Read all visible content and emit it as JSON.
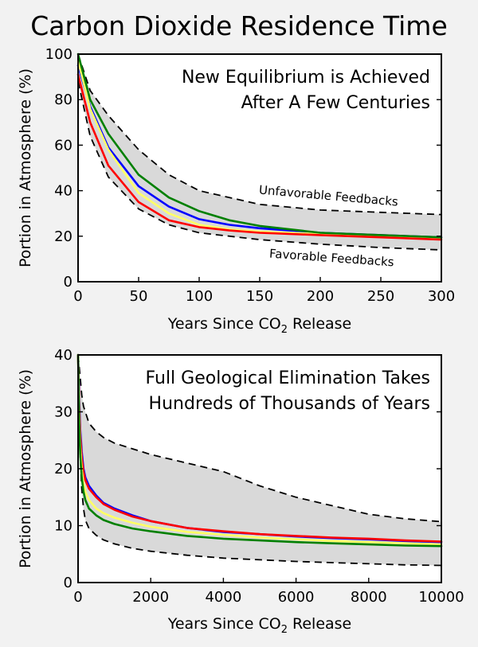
{
  "page_title": "Carbon Dioxide Residence Time",
  "colors": {
    "band_fill": "#d9d9d9",
    "bound_line": "#000000",
    "red": "#ff0000",
    "yellow": "#ffff66",
    "blue": "#0000ff",
    "green": "#008000"
  },
  "chart_data": [
    {
      "type": "line",
      "annotation": [
        "New Equilibrium is Achieved",
        "After A Few Centuries"
      ],
      "xlabel": "Years Since CO",
      "xlabel_sub": "2",
      "xlabel_after": " Release",
      "ylabel": "Portion in Atmosphere (%)",
      "xlim": [
        0,
        300
      ],
      "ylim": [
        0,
        100
      ],
      "xticks": [
        0,
        50,
        100,
        150,
        200,
        250,
        300
      ],
      "yticks": [
        0,
        20,
        40,
        60,
        80,
        100
      ],
      "upper_bound": {
        "name": "Unfavorable Feedbacks",
        "x": [
          0,
          10,
          25,
          50,
          75,
          100,
          150,
          200,
          250,
          300
        ],
        "y": [
          100,
          84,
          73,
          58,
          47,
          40,
          34,
          31.5,
          30.5,
          29.5
        ]
      },
      "lower_bound": {
        "name": "Favorable Feedbacks",
        "x": [
          0,
          10,
          25,
          50,
          75,
          100,
          150,
          200,
          250,
          300
        ],
        "y": [
          88,
          64,
          46,
          32,
          25,
          21.5,
          18.5,
          16.5,
          15,
          14
        ]
      },
      "series": [
        {
          "color": "#0000ff",
          "x": [
            0,
            10,
            25,
            50,
            75,
            100,
            125,
            150,
            200,
            250,
            300
          ],
          "y": [
            95,
            77,
            59,
            42,
            33,
            27.5,
            25,
            23.5,
            21.5,
            20.5,
            19.5
          ]
        },
        {
          "color": "#ffff66",
          "x": [
            0,
            10,
            25,
            50,
            75,
            100,
            125,
            150,
            200,
            250,
            300
          ],
          "y": [
            97,
            76,
            58,
            39,
            30,
            25,
            23,
            22,
            21,
            20,
            19
          ]
        },
        {
          "color": "#ff0000",
          "x": [
            0,
            10,
            25,
            50,
            75,
            100,
            125,
            150,
            200,
            250,
            300
          ],
          "y": [
            91,
            70,
            51,
            35,
            27,
            24,
            22.5,
            21.5,
            20.5,
            19.5,
            18.5
          ]
        },
        {
          "color": "#008000",
          "x": [
            0,
            10,
            25,
            50,
            75,
            100,
            125,
            150,
            200,
            250,
            300
          ],
          "y": [
            100,
            80,
            65,
            47,
            37,
            31,
            27,
            24.5,
            21.5,
            20.5,
            19.5
          ]
        }
      ]
    },
    {
      "type": "line",
      "annotation": [
        "Full Geological Elimination Takes",
        "Hundreds of Thousands of Years"
      ],
      "xlabel": "Years Since CO",
      "xlabel_sub": "2",
      "xlabel_after": " Release",
      "ylabel": "Portion in Atmosphere (%)",
      "xlim": [
        0,
        10000
      ],
      "ylim": [
        0,
        40
      ],
      "xticks": [
        0,
        2000,
        4000,
        6000,
        8000,
        10000
      ],
      "yticks": [
        0,
        10,
        20,
        30,
        40
      ],
      "upper_bound": {
        "x": [
          0,
          30,
          60,
          100,
          150,
          200,
          300,
          500,
          700,
          1000,
          1500,
          2000,
          3000,
          4000,
          5000,
          6000,
          7000,
          8000,
          9000,
          10000
        ],
        "y": [
          40,
          38,
          36,
          33,
          31,
          30,
          28,
          26.5,
          25.5,
          24.5,
          23.5,
          22.5,
          21,
          19.5,
          17,
          15,
          13.5,
          12,
          11.2,
          10.7
        ]
      },
      "lower_bound": {
        "x": [
          0,
          30,
          60,
          100,
          150,
          200,
          300,
          500,
          700,
          1000,
          1500,
          2000,
          3000,
          4000,
          5000,
          6000,
          7000,
          8000,
          9000,
          10000
        ],
        "y": [
          40,
          30,
          22,
          16.5,
          13,
          11,
          9.5,
          8.3,
          7.5,
          6.8,
          6,
          5.5,
          4.8,
          4.3,
          4,
          3.7,
          3.5,
          3.3,
          3.1,
          3.0
        ]
      },
      "series": [
        {
          "color": "#0000ff",
          "x": [
            0,
            30,
            60,
            100,
            150,
            200,
            300,
            500,
            700,
            1000,
            1500,
            2000,
            3000,
            4000,
            5000,
            6000,
            7000,
            8000,
            9000,
            10000
          ],
          "y": [
            40,
            32,
            27,
            23,
            20,
            18.5,
            17,
            15.3,
            14,
            13,
            11.8,
            10.8,
            9.6,
            8.9,
            8.5,
            8.1,
            7.8,
            7.6,
            7.3,
            7.1
          ]
        },
        {
          "color": "#ff0000",
          "x": [
            0,
            30,
            60,
            100,
            150,
            200,
            300,
            500,
            700,
            1000,
            1500,
            2000,
            3000,
            4000,
            5000,
            6000,
            7000,
            8000,
            9000,
            10000
          ],
          "y": [
            40,
            31,
            26,
            22,
            19.5,
            18,
            16.5,
            15,
            13.8,
            12.8,
            11.6,
            10.8,
            9.6,
            9,
            8.5,
            8.2,
            7.9,
            7.7,
            7.4,
            7.2
          ]
        },
        {
          "color": "#ffff66",
          "x": [
            0,
            30,
            60,
            100,
            150,
            200,
            300,
            500,
            700,
            1000,
            1500,
            2000,
            3000,
            4000,
            5000,
            6000,
            7000,
            8000,
            9000,
            10000
          ],
          "y": [
            40,
            29,
            24,
            20,
            17.5,
            16,
            14.5,
            13,
            12.2,
            11.4,
            10.5,
            9.8,
            8.9,
            8.4,
            7.9,
            7.6,
            7.3,
            7.1,
            6.9,
            6.7
          ]
        },
        {
          "color": "#008000",
          "x": [
            0,
            30,
            60,
            100,
            150,
            200,
            300,
            500,
            700,
            1000,
            1500,
            2000,
            3000,
            4000,
            5000,
            6000,
            7000,
            8000,
            9000,
            10000
          ],
          "y": [
            40,
            28,
            22.5,
            18.5,
            16,
            14.5,
            13,
            11.8,
            11,
            10.3,
            9.5,
            9,
            8.2,
            7.7,
            7.4,
            7.1,
            6.9,
            6.7,
            6.5,
            6.4
          ]
        }
      ]
    }
  ]
}
